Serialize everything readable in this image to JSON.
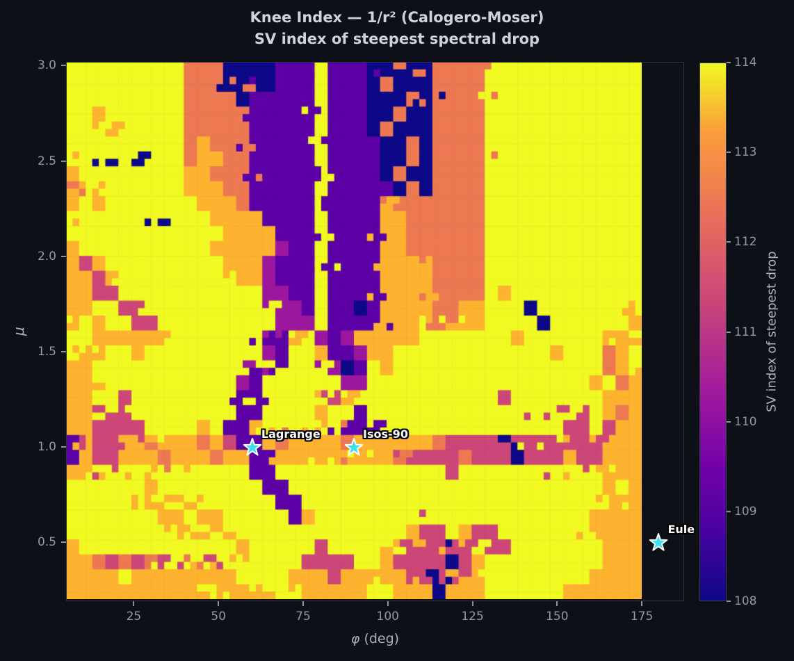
{
  "figure": {
    "title_line1": "Knee Index — 1/r² (Calogero-Moser)",
    "title_line2": "SV index of steepest spectral drop",
    "background": "#0d1117",
    "text_color": "#cdd3dd",
    "tick_color": "#9299a8"
  },
  "chart_data": {
    "type": "heatmap",
    "title": "Knee Index — 1/r² (Calogero-Moser)",
    "subtitle": "SV index of steepest spectral drop",
    "xlabel_symbol": "φ",
    "xlabel_rest": " (deg)",
    "ylabel_symbol": "μ",
    "xlim": [
      5,
      187.5
    ],
    "ylim": [
      0.19,
      3.02
    ],
    "heatmap_x_extent": [
      5,
      175
    ],
    "heatmap_y_extent": [
      0.2,
      3.0
    ],
    "x_ticks": [
      25,
      50,
      75,
      100,
      125,
      150,
      175
    ],
    "y_ticks": [
      0.5,
      1.0,
      1.5,
      2.0,
      2.5,
      3.0
    ],
    "grid_off": true,
    "colormap": "plasma",
    "vmin": 108,
    "vmax": 114,
    "value_colors": {
      "108": "#0d0887",
      "109": "#5c01a6",
      "110": "#9c179e",
      "111": "#cc4778",
      "112": "#ed7953",
      "113": "#fdb32f",
      "114": "#f0f921"
    },
    "colorbar": {
      "label": "SV index of steepest drop",
      "ticks": [
        108,
        109,
        110,
        111,
        112,
        113,
        114
      ],
      "position": "right"
    },
    "grid_encoding": "36 rows top-to-bottom (mu 3.0 to 0.2) x 44 cols left-to-right (phi 5 to 175); char '0'-'6' = SV index 108-114",
    "grid": [
      "66666666644400001116111004004444666666666666",
      "66666666644404001116111040004444666666666666",
      "66666666644440111116111000404444666666666666",
      "66566666644444111116111004004444666666666666",
      "66656666644444111116111040004444666666666666",
      "66666666645444111116111100404444666666666666",
      "66606066645544111116111100404444666666666666",
      "56666666655444111116111104004444666666666666",
      "45666666655544111116111110404444666666666666",
      "56566666665554111116111154444444666666666666",
      "66666660666555511116111155444444666666666666",
      "66666666666655551116111155444444666666666666",
      "56666666666555552116111155444444666666666666",
      "53566666666655521116111155554444666666666666",
      "55356666666665521116111155554444666666666666",
      "55336666666666622116111155554444656666666666",
      "55663366666666662216110155554455666066666665",
      "56566336666666662226111155564555666606666665",
      "66555555666666611562125555566666665666666556",
      "65566566666666621665112556666666666665666456",
      "55666666666666216666201656666666666666666456",
      "55566666666662166666622666666666666666665645",
      "55663666666661166666356666666666636666666555",
      "55633666666661166665661666666666666636636545",
      "55333366665611566666611166666666666666336355",
      "13335545554531154555545555554333303333333555",
      "15335554555455115555555554333343330333533555",
      "55666666666666116666666666666366666666666555",
      "66666656666666611666666666666666666666666565",
      "66666556656666661166666666666666666666666565",
      "66666665565566666156666666666666666666665555",
      "66666666655656666666666666533653366666665555",
      "56666666666665666663666665335336336666666555",
      "55434343646366666633336653333035666666666555",
      "55556555555556666555355555330355666666665555",
      "55555555556655556655555665550555666666555555"
    ],
    "annotations": [
      {
        "label": "Lagrange",
        "phi": 60,
        "mu": 1.0
      },
      {
        "label": "Isos-90",
        "phi": 90,
        "mu": 1.0
      },
      {
        "label": "Eule",
        "phi": 180,
        "mu": 0.5
      }
    ],
    "marker_style": {
      "shape": "star",
      "fill": "#3ee0f0",
      "edge": "#ffffff"
    },
    "legend": null
  }
}
